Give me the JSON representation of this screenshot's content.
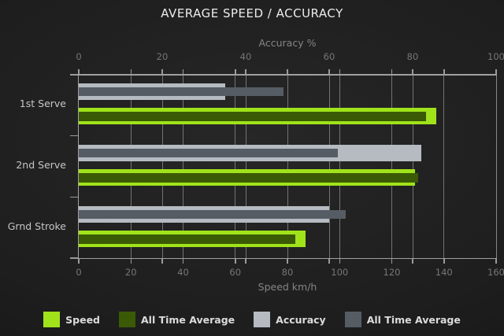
{
  "title": "AVERAGE SPEED / ACCURACY",
  "chart_data": {
    "type": "bar",
    "orientation": "horizontal",
    "title": "AVERAGE SPEED / ACCURACY",
    "categories": [
      "1st Serve",
      "2nd Serve",
      "Grnd Stroke"
    ],
    "top_axis": {
      "label": "Accuracy %",
      "min": 0,
      "max": 100,
      "ticks": [
        0,
        20,
        40,
        60,
        80,
        100
      ]
    },
    "bottom_axis": {
      "label": "Speed km/h",
      "min": 0,
      "max": 160,
      "ticks": [
        0,
        20,
        40,
        60,
        80,
        100,
        120,
        140,
        160
      ]
    },
    "grid": true,
    "legend_position": "bottom",
    "series": [
      {
        "name": "Speed",
        "axis": "bottom",
        "role": "speed",
        "color": "#a0e31a",
        "values": [
          137,
          129,
          87
        ]
      },
      {
        "name": "All Time Average",
        "axis": "bottom",
        "role": "speed-average",
        "color": "#3a5a06",
        "values": [
          133,
          130,
          83
        ]
      },
      {
        "name": "Accuracy",
        "axis": "top",
        "role": "accuracy",
        "color": "#b5bbc1",
        "values": [
          35,
          82,
          60
        ]
      },
      {
        "name": "All Time Average",
        "axis": "top",
        "role": "accuracy-average",
        "color": "#555c64",
        "values": [
          49,
          62,
          64
        ]
      }
    ]
  },
  "colors": {
    "background_center": "#272727",
    "background_edge": "#131313",
    "gridline": "#8f8f8f",
    "tick_label": "#767676",
    "axis_title": "#858585",
    "category_label": "#c6c6c6",
    "chart_title": "#ececec",
    "legend_text": "#dcdcdc",
    "speed": "#a0e31a",
    "speed_average": "#3a5a06",
    "accuracy": "#b5bbc1",
    "accuracy_average": "#555c64"
  }
}
